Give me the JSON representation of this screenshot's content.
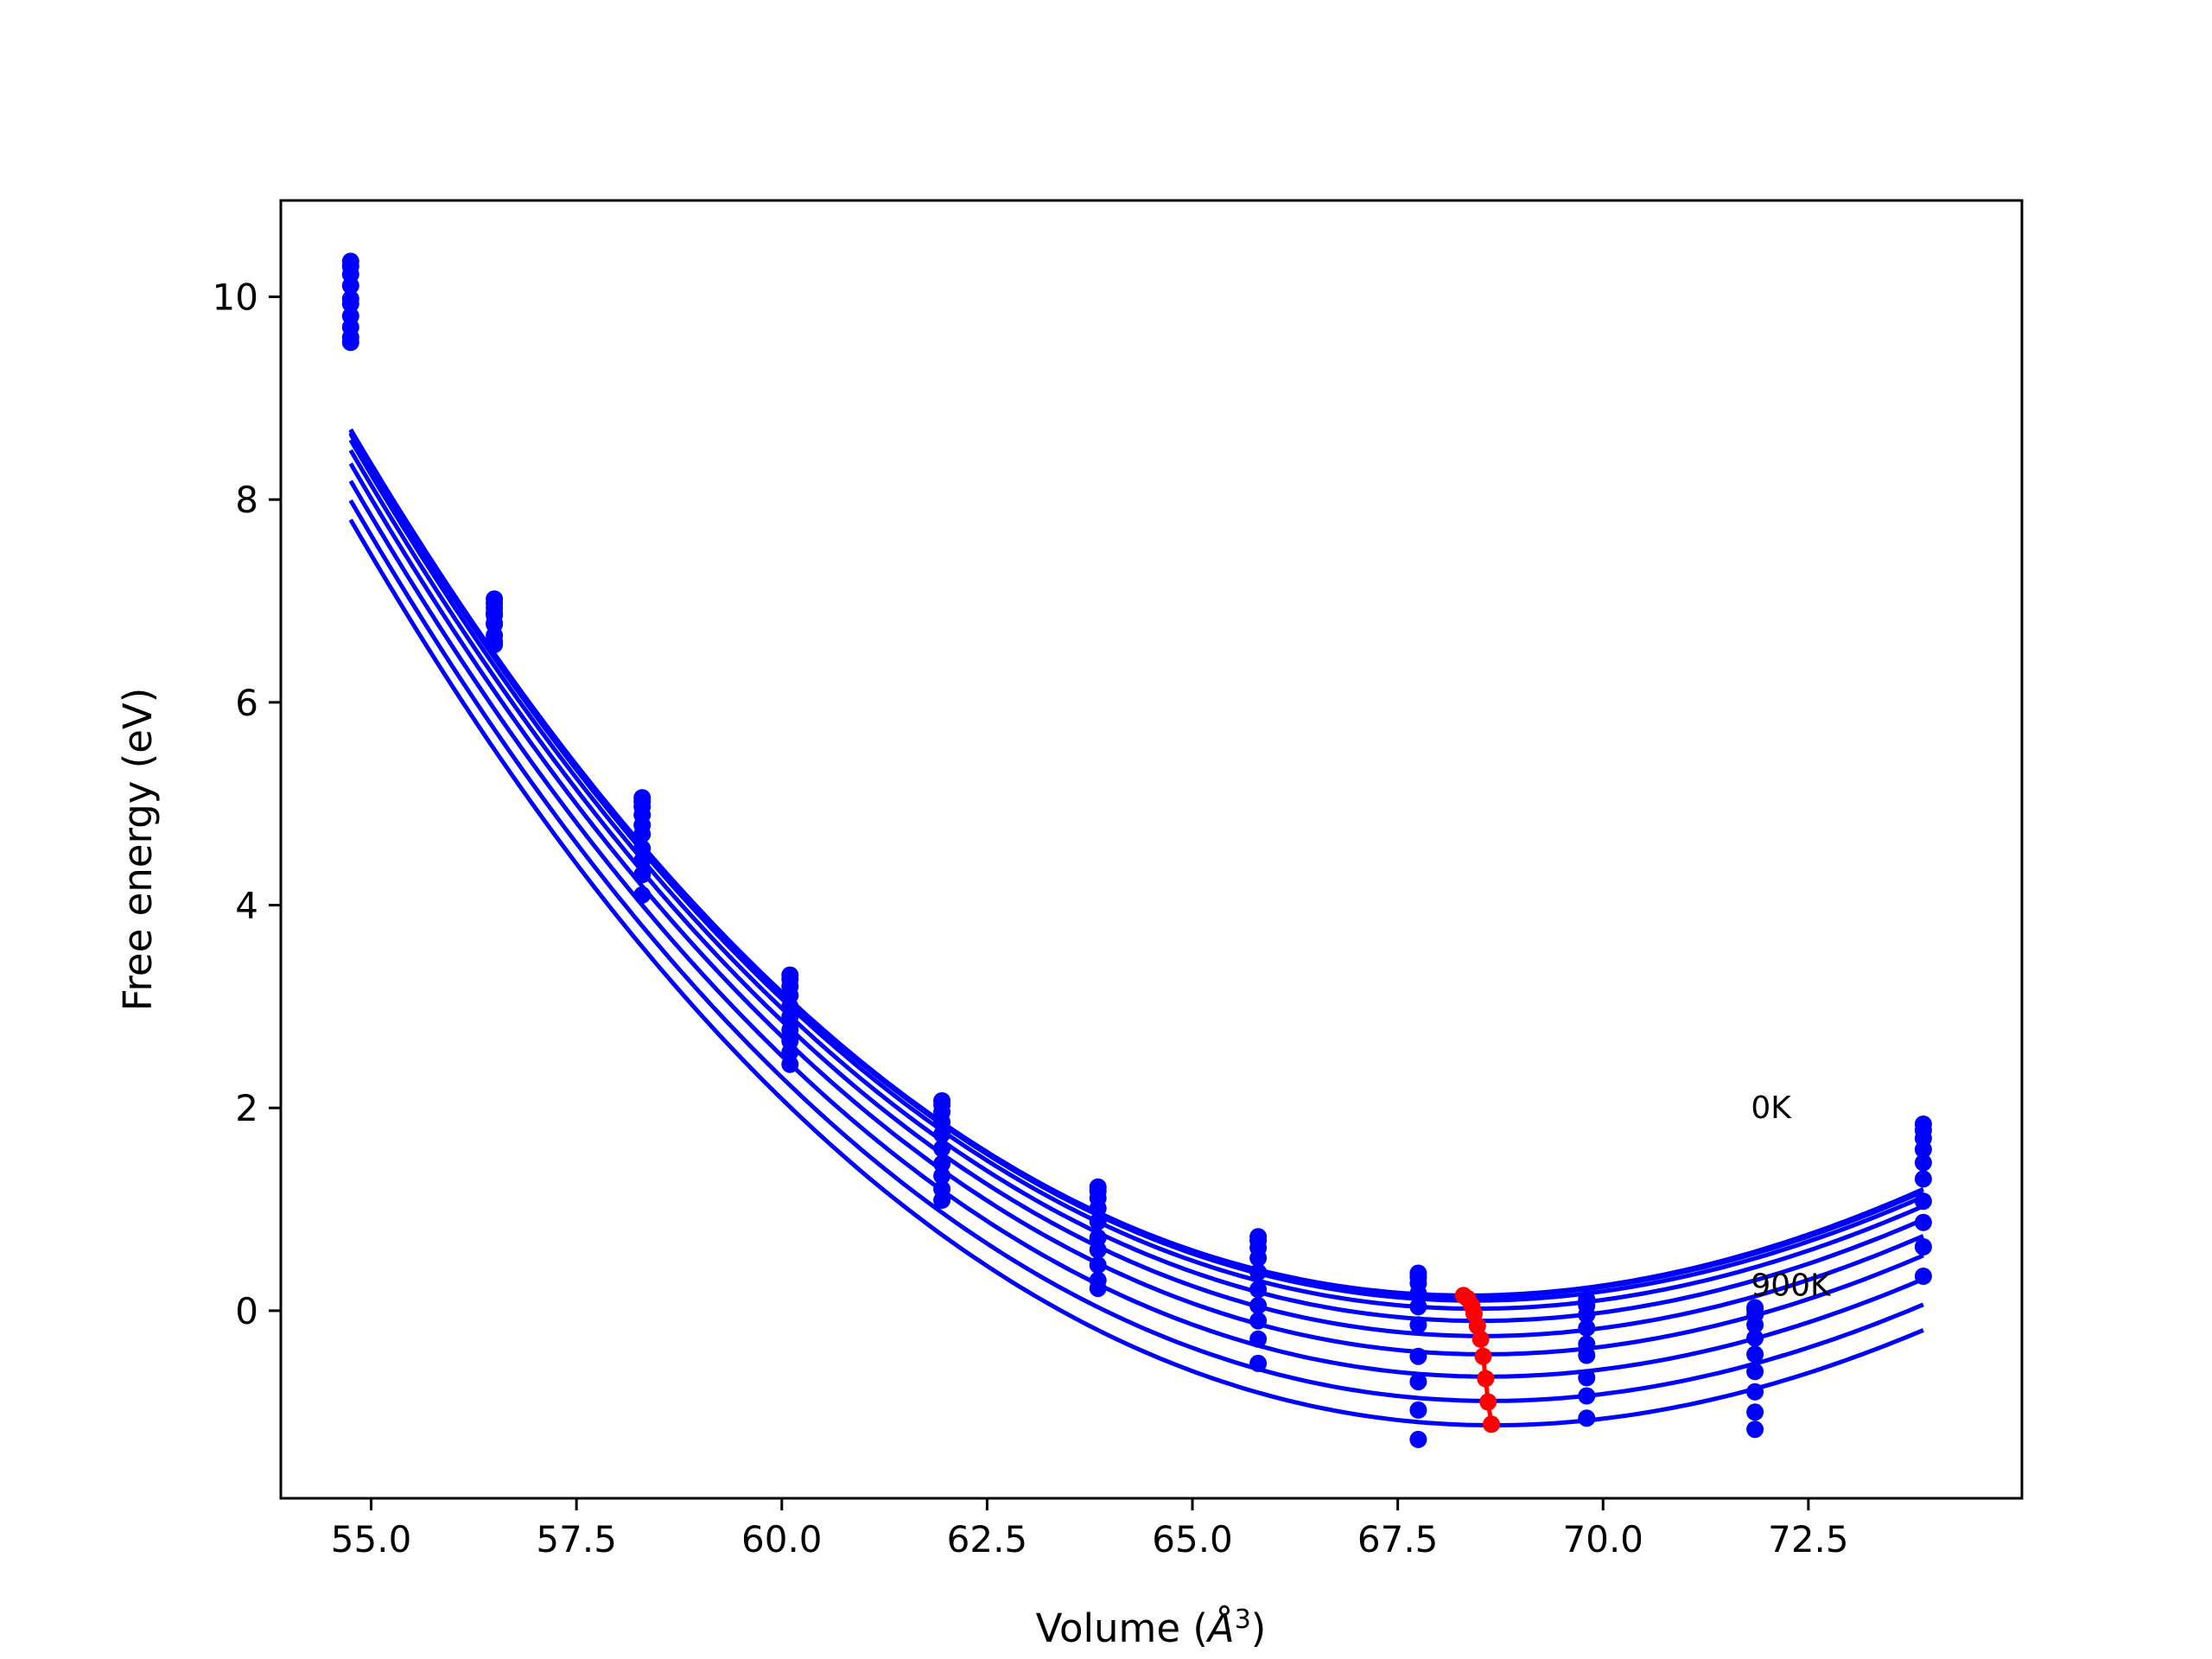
{
  "chart_data": {
    "type": "line",
    "title": "",
    "xlabel": "Volume (",
    "xlabel_symbol": "Å",
    "xlabel_exp": "3",
    "xlabel_close": ")",
    "ylabel": "Free energy (eV)",
    "xlim": [
      53.9,
      75.1
    ],
    "ylim": [
      -1.85,
      10.95
    ],
    "xticks": [
      55.0,
      57.5,
      60.0,
      62.5,
      65.0,
      67.5,
      70.0,
      72.5
    ],
    "xtick_labels": [
      "55.0",
      "57.5",
      "60.0",
      "62.5",
      "65.0",
      "67.5",
      "70.0",
      "72.5"
    ],
    "yticks": [
      0,
      2,
      4,
      6,
      8,
      10
    ],
    "ytick_labels": [
      "0",
      "2",
      "4",
      "6",
      "8",
      "10"
    ],
    "grid": false,
    "annotations": [
      {
        "text": "0K",
        "x": 71.8,
        "y": 1.9
      },
      {
        "text": "900K",
        "x": 71.8,
        "y": 0.15
      }
    ],
    "line_color": "#0000ff",
    "marker_color": "#0000ff",
    "minima_color": "#ff0000",
    "volumes": [
      54.75,
      56.5,
      58.3,
      60.1,
      61.95,
      63.85,
      65.8,
      67.75,
      69.8,
      71.85,
      73.9
    ],
    "fit": {
      "v0_base": 68.35,
      "v0_step": 0.035,
      "a": 0.0375,
      "b": 0.00062,
      "e0": [
        0.15,
        0.14,
        0.1,
        0.02,
        -0.1,
        -0.25,
        -0.43,
        -0.65,
        -0.89,
        -1.13
      ]
    },
    "series": [
      {
        "values": [
          10.35,
          7.02,
          5.06,
          3.31,
          2.07,
          1.22,
          0.73,
          0.37,
          0.11,
          0.03,
          1.84
        ]
      },
      {
        "values": [
          10.3,
          6.98,
          5.02,
          3.27,
          2.03,
          1.18,
          0.69,
          0.33,
          0.1,
          0.01,
          1.78
        ]
      },
      {
        "values": [
          10.22,
          6.93,
          4.97,
          3.2,
          1.96,
          1.11,
          0.62,
          0.27,
          0.05,
          -0.04,
          1.7
        ]
      },
      {
        "values": [
          10.11,
          6.86,
          4.89,
          3.11,
          1.86,
          1.01,
          0.52,
          0.17,
          -0.04,
          -0.14,
          1.59
        ]
      },
      {
        "values": [
          9.98,
          6.78,
          4.79,
          3.0,
          1.74,
          0.88,
          0.38,
          0.04,
          -0.17,
          -0.27,
          1.46
        ]
      },
      {
        "values": [
          9.93,
          6.88,
          4.7,
          2.9,
          1.6,
          0.72,
          0.21,
          -0.14,
          -0.33,
          -0.43,
          1.3
        ]
      },
      {
        "values": [
          9.81,
          6.77,
          4.56,
          2.77,
          1.45,
          0.6,
          0.05,
          -0.45,
          -0.44,
          -0.6,
          1.08
        ]
      },
      {
        "values": [
          9.7,
          6.66,
          4.44,
          2.66,
          1.33,
          0.45,
          -0.1,
          -0.7,
          -0.66,
          -0.8,
          0.87
        ]
      },
      {
        "values": [
          9.6,
          6.6,
          4.3,
          2.55,
          1.2,
          0.3,
          -0.28,
          -0.98,
          -0.84,
          -1.0,
          0.63
        ]
      },
      {
        "values": [
          9.55,
          6.57,
          4.1,
          2.43,
          1.09,
          0.22,
          -0.52,
          -1.27,
          -1.06,
          -1.17,
          0.34
        ]
      }
    ],
    "minima": {
      "x": [
        68.3,
        68.35,
        68.4,
        68.43,
        68.47,
        68.51,
        68.54,
        68.57,
        68.6,
        68.64
      ],
      "y": [
        0.15,
        0.12,
        0.05,
        -0.03,
        -0.15,
        -0.28,
        -0.45,
        -0.67,
        -0.9,
        -1.12
      ]
    }
  }
}
